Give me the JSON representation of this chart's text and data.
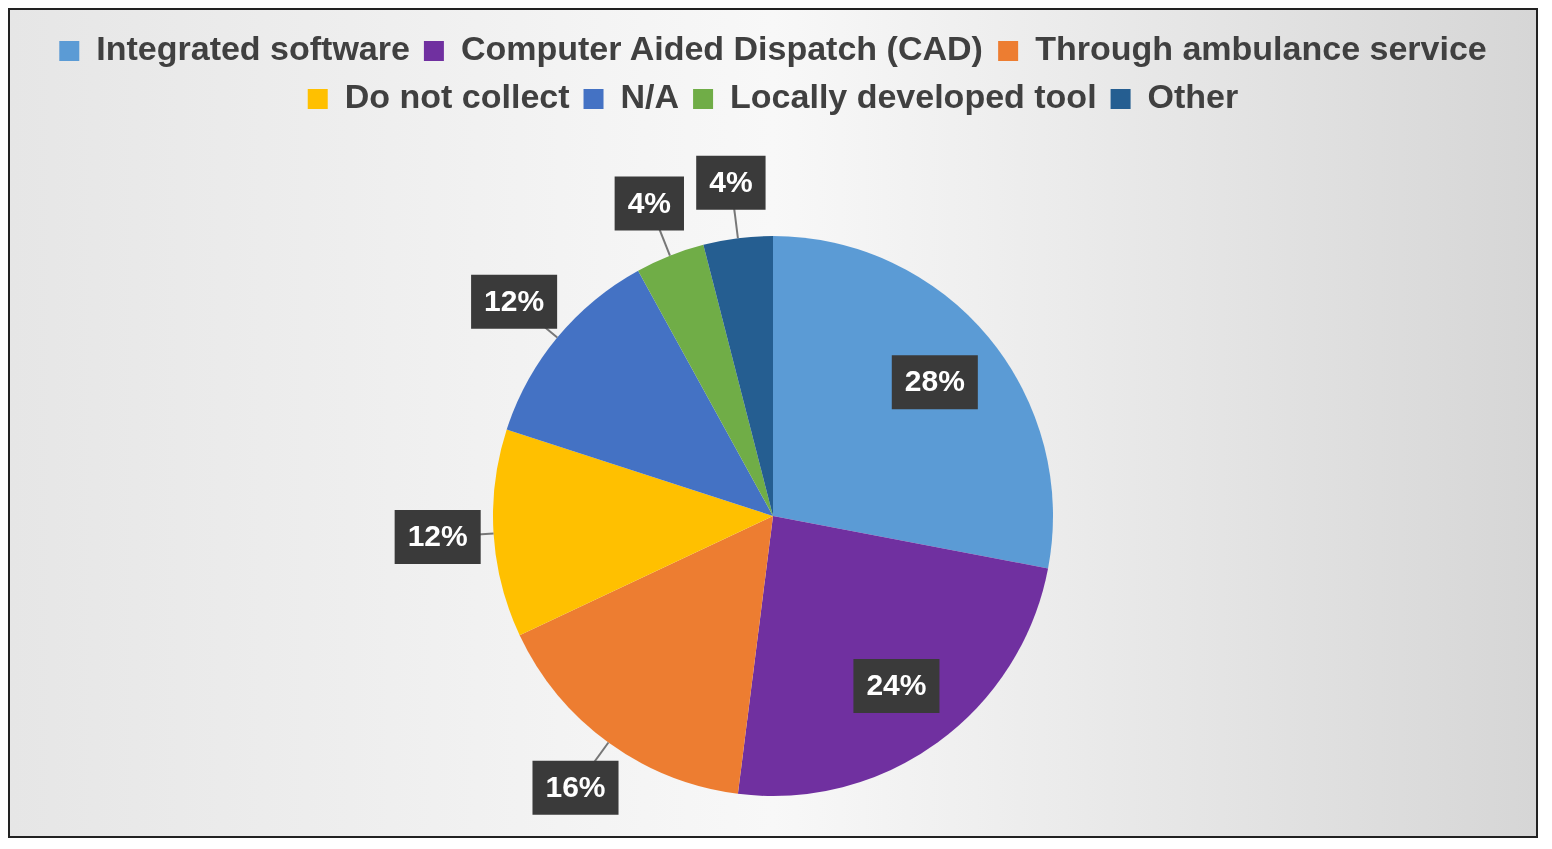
{
  "chart_data": {
    "type": "pie",
    "categories": [
      "Integrated software",
      "Computer Aided Dispatch (CAD)",
      "Through ambulance service",
      "Do not collect",
      "N/A",
      "Locally developed tool",
      "Other"
    ],
    "values": [
      28,
      24,
      16,
      12,
      12,
      4,
      4
    ],
    "colors": [
      "#5b9bd5",
      "#7030a0",
      "#ed7d31",
      "#ffc000",
      "#4472c4",
      "#70ad47",
      "#255e91"
    ],
    "value_labels": [
      "28%",
      "24%",
      "16%",
      "12%",
      "12%",
      "4%",
      "4%"
    ],
    "legend": "top"
  }
}
